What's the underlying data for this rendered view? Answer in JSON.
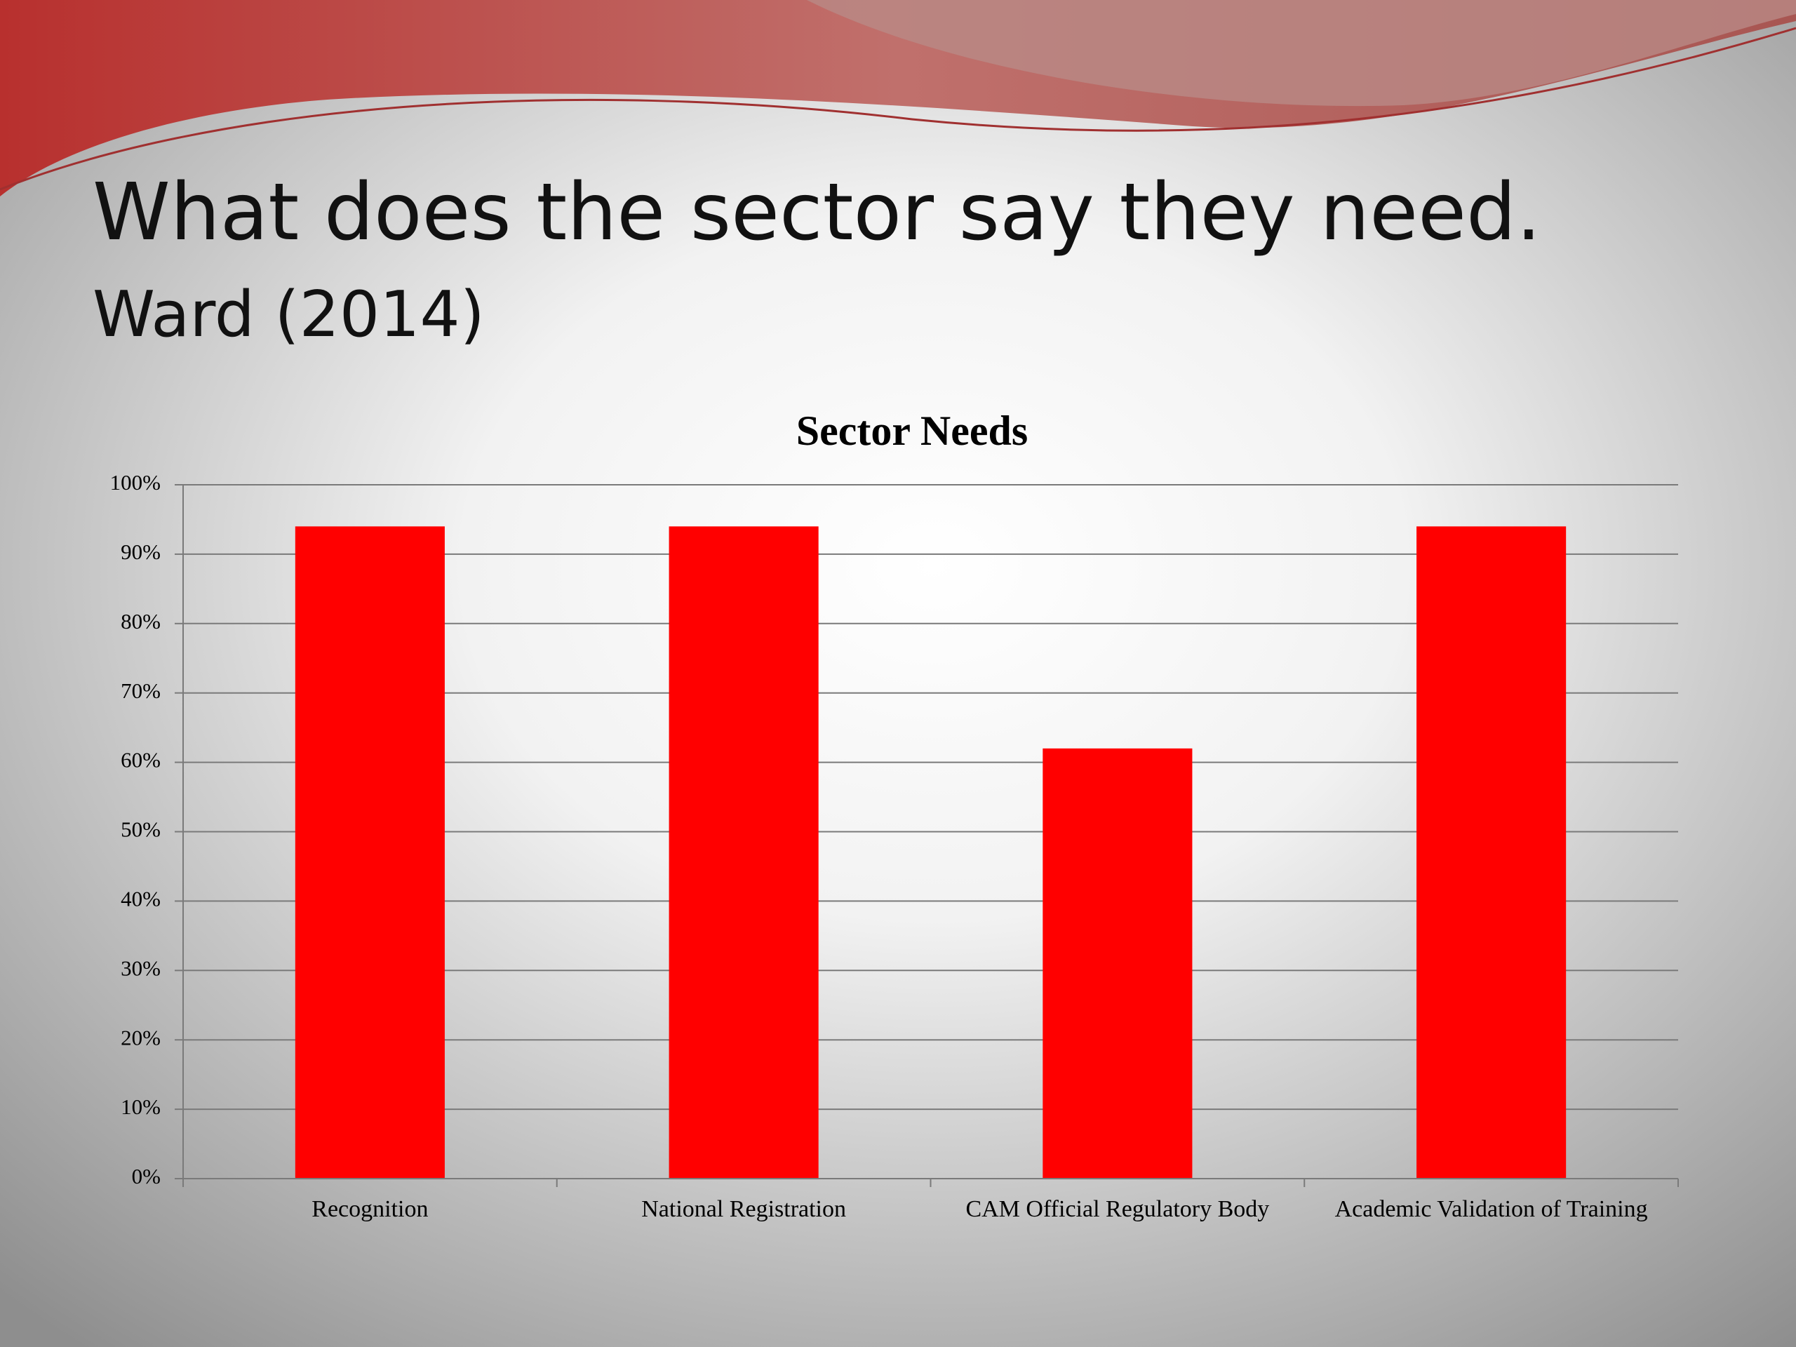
{
  "slide": {
    "title": "What does the sector say they need.",
    "subtitle": "Ward (2014)"
  },
  "chart_data": {
    "type": "bar",
    "title": "Sector Needs",
    "categories": [
      "Recognition",
      "National Registration",
      "CAM Official Regulatory Body",
      "Academic Validation of Training"
    ],
    "values": [
      94,
      94,
      62,
      94
    ],
    "color": "#ff0000",
    "ylim": [
      0,
      100
    ],
    "yticks": [
      {
        "value": 0,
        "label": "0%"
      },
      {
        "value": 10,
        "label": "10%"
      },
      {
        "value": 20,
        "label": "20%"
      },
      {
        "value": 30,
        "label": "30%"
      },
      {
        "value": 40,
        "label": "40%"
      },
      {
        "value": 50,
        "label": "50%"
      },
      {
        "value": 60,
        "label": "60%"
      },
      {
        "value": 70,
        "label": "70%"
      },
      {
        "value": 80,
        "label": "80%"
      },
      {
        "value": 90,
        "label": "90%"
      },
      {
        "value": 100,
        "label": "100%"
      }
    ],
    "grid": true
  }
}
